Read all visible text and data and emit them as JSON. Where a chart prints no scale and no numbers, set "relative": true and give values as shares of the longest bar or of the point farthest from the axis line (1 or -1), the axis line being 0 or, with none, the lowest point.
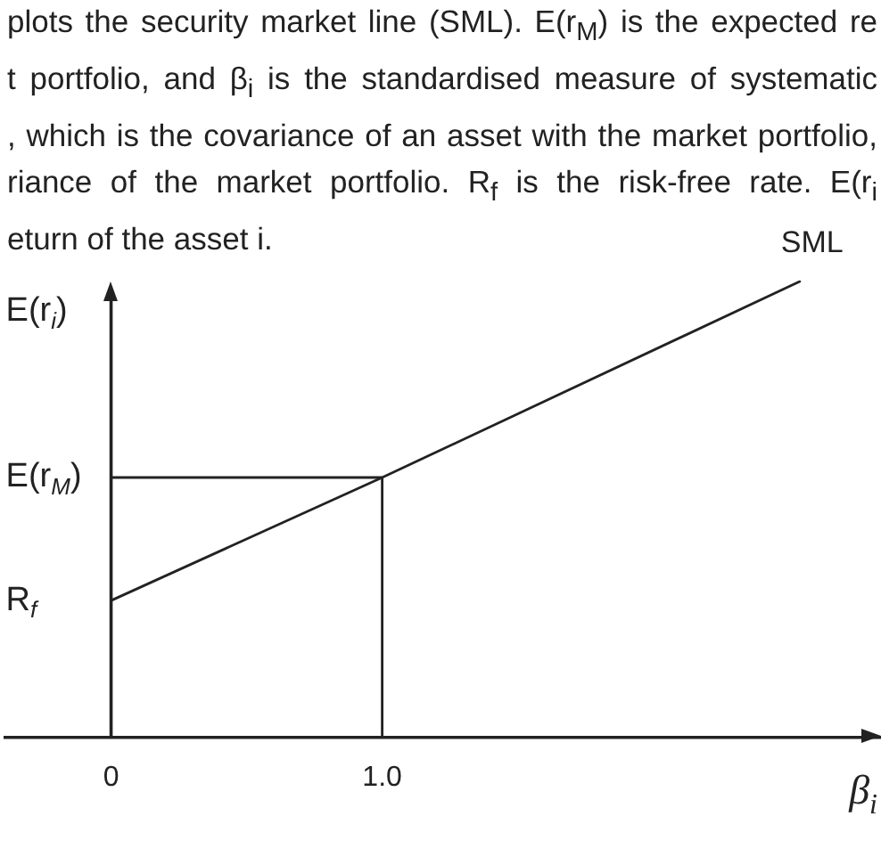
{
  "chart_data": {
    "type": "line",
    "annotations": [
      "plots the security market line (SML). E(r$_{M}$) is the expected re",
      "t portfolio, and β$_{i}$ is the standardised measure of systematic",
      ", which is the covariance of an asset with the market portfolio,",
      "riance of the market portfolio. R$_{f}$ is the risk-free rate. E(r$_{i}$",
      "eturn of the asset i.",
      {
        "text": "E(r$_{M}$)",
        "x": 0,
        "y": 0.57
      },
      {
        "text": "R$_{f}$",
        "x": 0,
        "y": 0.3
      }
    ],
    "xlabel": "β$_{i}$",
    "ylabel": "E(r$_{i}$)",
    "relative": true,
    "xlim": [
      -0.39,
      2.84
    ],
    "xticks": [
      0,
      {
        "value": 1,
        "label": "1.0"
      }
    ],
    "series": [
      {
        "name": "SML",
        "color": "#222222",
        "x": [
          0,
          1,
          2.54
        ],
        "values": [
          0.3,
          0.57,
          1
        ]
      },
      {
        "color": "#222222",
        "x": [
          0,
          1,
          1
        ],
        "values": [
          0.57,
          0.57,
          0
        ]
      }
    ]
  }
}
